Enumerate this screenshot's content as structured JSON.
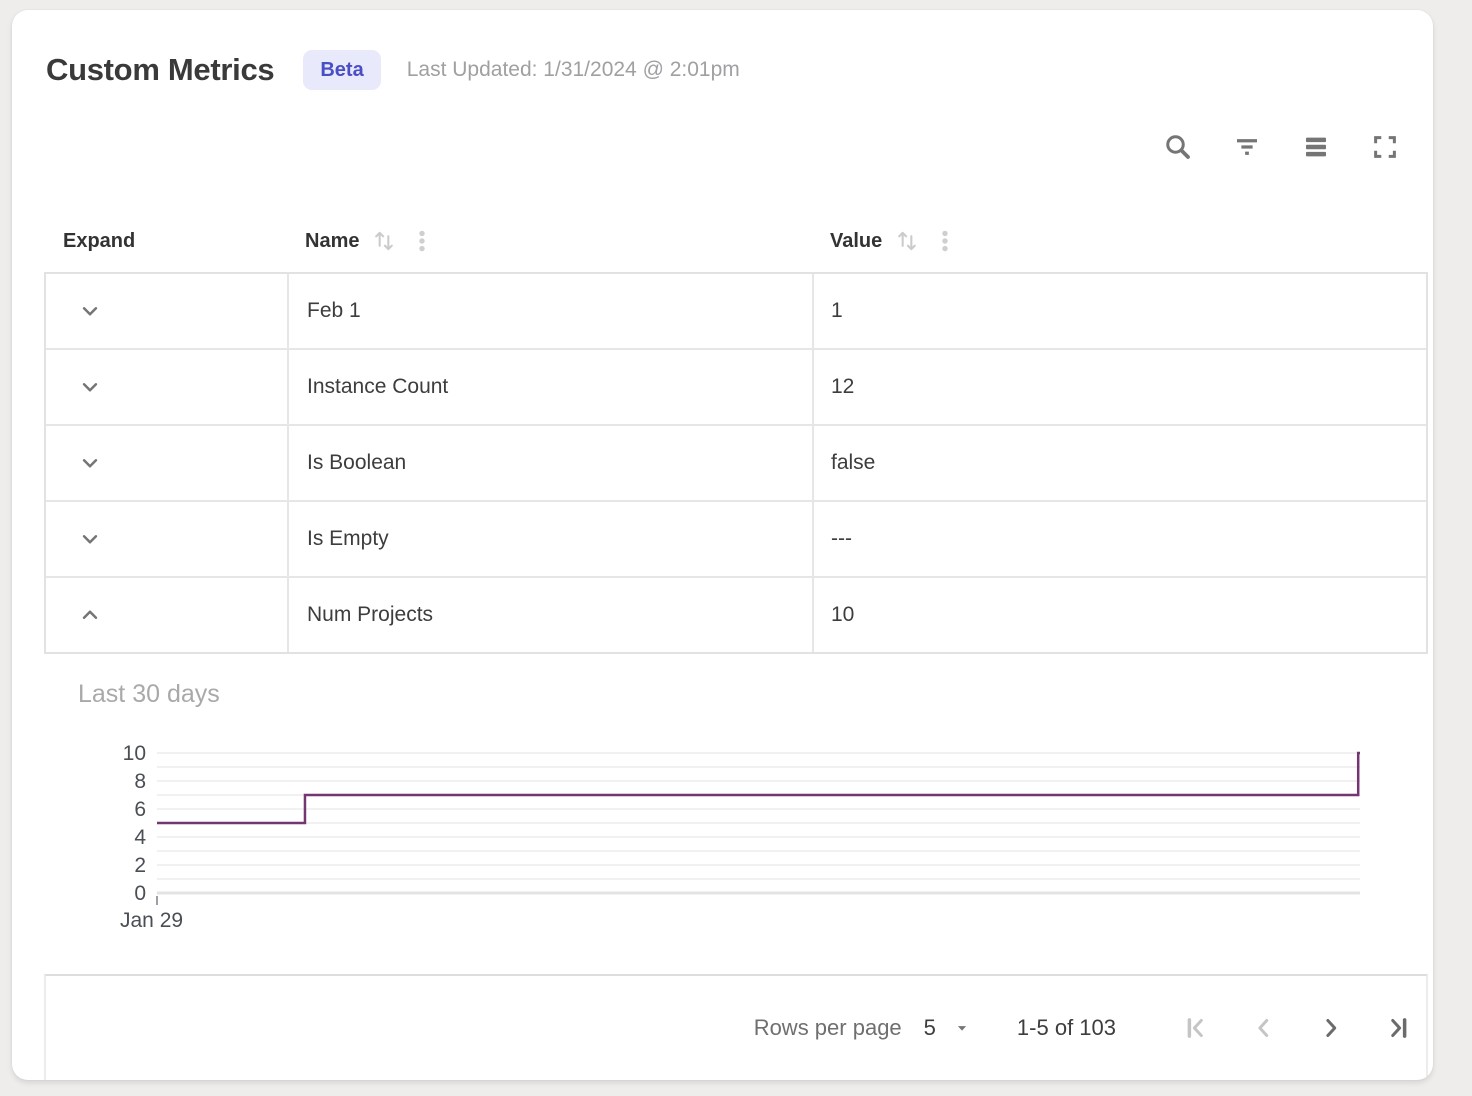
{
  "page": {
    "title": "Custom Metrics",
    "badge": "Beta",
    "last_updated": "Last Updated: 1/31/2024 @ 2:01pm"
  },
  "toolbar": {
    "icons": [
      "search-icon",
      "filter-icon",
      "density-icon",
      "fullscreen-icon"
    ]
  },
  "table": {
    "columns": [
      {
        "label": "Expand",
        "sortable": false
      },
      {
        "label": "Name",
        "sortable": true
      },
      {
        "label": "Value",
        "sortable": true
      }
    ],
    "rows": [
      {
        "name": "Feb 1",
        "value": "1",
        "expanded": false
      },
      {
        "name": "Instance Count",
        "value": "12",
        "expanded": false
      },
      {
        "name": "Is Boolean",
        "value": "false",
        "expanded": false
      },
      {
        "name": "Is Empty",
        "value": "---",
        "expanded": false
      },
      {
        "name": "Num Projects",
        "value": "10",
        "expanded": true
      }
    ]
  },
  "chart_data": {
    "type": "line",
    "step": true,
    "title": "Last 30 days",
    "series": [
      {
        "name": "Num Projects",
        "points": [
          {
            "x_frac": 0.0,
            "y": 5
          },
          {
            "x_frac": 0.123,
            "y": 5
          },
          {
            "x_frac": 0.123,
            "y": 7
          },
          {
            "x_frac": 0.9985,
            "y": 7
          },
          {
            "x_frac": 0.9985,
            "y": 10
          },
          {
            "x_frac": 1.0,
            "y": 10
          }
        ]
      }
    ],
    "ylim": [
      0,
      10
    ],
    "y_ticks": [
      0,
      2,
      4,
      6,
      8,
      10
    ],
    "grid_step": 1,
    "x_tick_labels": [
      "Jan 29"
    ],
    "legend": "none",
    "line_color": "#743570"
  },
  "pagination": {
    "rows_per_page_label": "Rows per page",
    "rows_per_page_value": "5",
    "range_label": "1-5 of 103",
    "nav": [
      {
        "name": "first-page-button",
        "icon": "first-page-icon",
        "disabled": true
      },
      {
        "name": "previous-page-button",
        "icon": "chevron-left-icon",
        "disabled": true
      },
      {
        "name": "next-page-button",
        "icon": "chevron-right-icon",
        "disabled": false
      },
      {
        "name": "last-page-button",
        "icon": "last-page-icon",
        "disabled": false
      }
    ]
  },
  "colors": {
    "badge_bg": "#e8e9fb",
    "badge_text": "#4a4ec5",
    "chart_line": "#743570",
    "table_border": "#e2e2e2",
    "icon_gray": "#757575",
    "disabled_icon": "#c5c5c5",
    "page_bg": "#eeedec"
  }
}
